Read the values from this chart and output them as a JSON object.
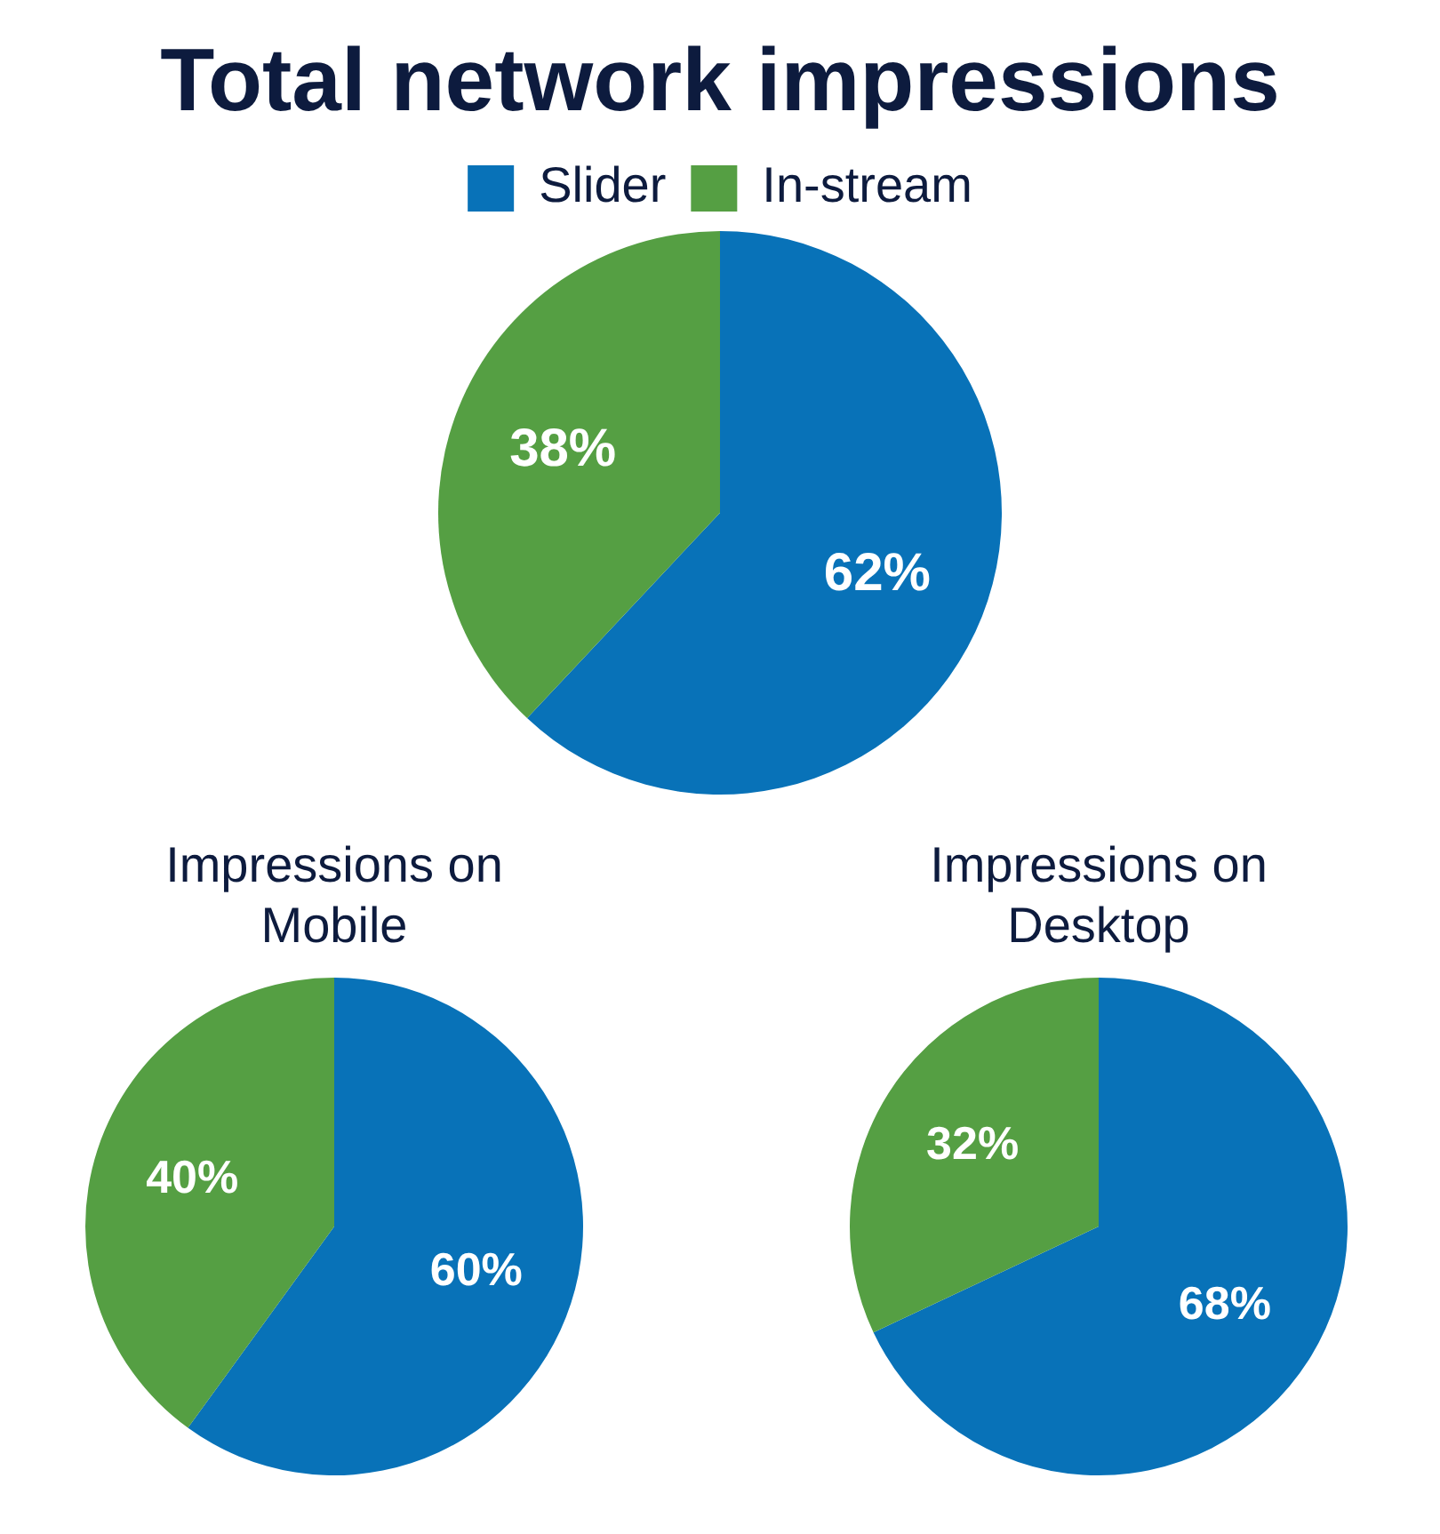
{
  "chart_data": [
    {
      "type": "pie",
      "title": "Total network impressions",
      "categories": [
        "Slider",
        "In-stream"
      ],
      "values": [
        62,
        38
      ],
      "colors": [
        "#0872b8",
        "#559f43"
      ],
      "value_labels": [
        "62%",
        "38%"
      ],
      "legend": "top"
    },
    {
      "type": "pie",
      "title": "Impressions on Mobile",
      "categories": [
        null,
        null
      ],
      "values": [
        60,
        40
      ],
      "colors": [
        "#0872b8",
        "#559f43"
      ],
      "value_labels": [
        "60%",
        "40%"
      ]
    },
    {
      "type": "pie",
      "title": "Impressions on Desktop",
      "categories": [
        null,
        null
      ],
      "values": [
        68,
        32
      ],
      "colors": [
        "#0872b8",
        "#559f43"
      ],
      "value_labels": [
        "68%",
        "32%"
      ]
    }
  ]
}
